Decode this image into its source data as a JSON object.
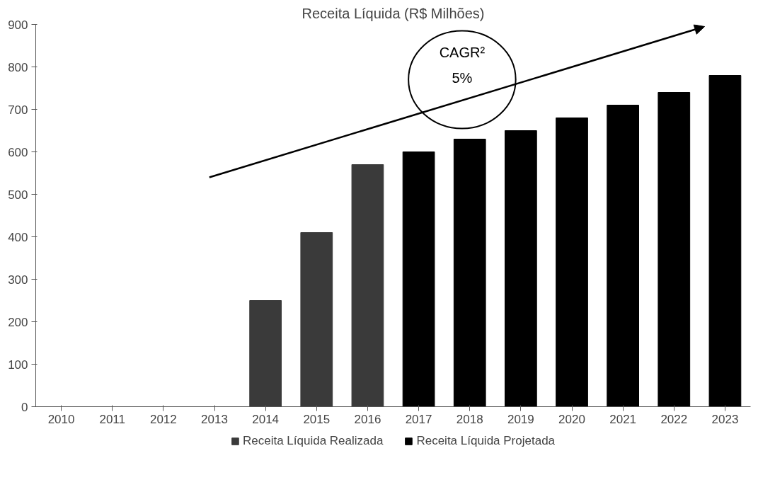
{
  "chart_data": {
    "type": "bar",
    "title": "Receita Líquida (R$ Milhões)",
    "categories": [
      "2010",
      "2011",
      "2012",
      "2013",
      "2014",
      "2015",
      "2016",
      "2017",
      "2018",
      "2019",
      "2020",
      "2021",
      "2022",
      "2023"
    ],
    "series": [
      {
        "name": "Receita Líquida Realizada",
        "color": "#3a3a3a",
        "values": [
          null,
          null,
          null,
          null,
          250,
          410,
          570,
          null,
          null,
          null,
          null,
          null,
          null,
          null
        ]
      },
      {
        "name": "Receita Líquida Projetada",
        "color": "#000000",
        "values": [
          null,
          null,
          null,
          null,
          null,
          null,
          null,
          600,
          630,
          650,
          680,
          710,
          740,
          780
        ]
      }
    ],
    "ylim": [
      0,
      900
    ],
    "yticks": [
      0,
      100,
      200,
      300,
      400,
      500,
      600,
      700,
      800,
      900
    ],
    "grid": false,
    "legend": "bottom",
    "annotations": [
      "CAGR²",
      "5%"
    ]
  }
}
